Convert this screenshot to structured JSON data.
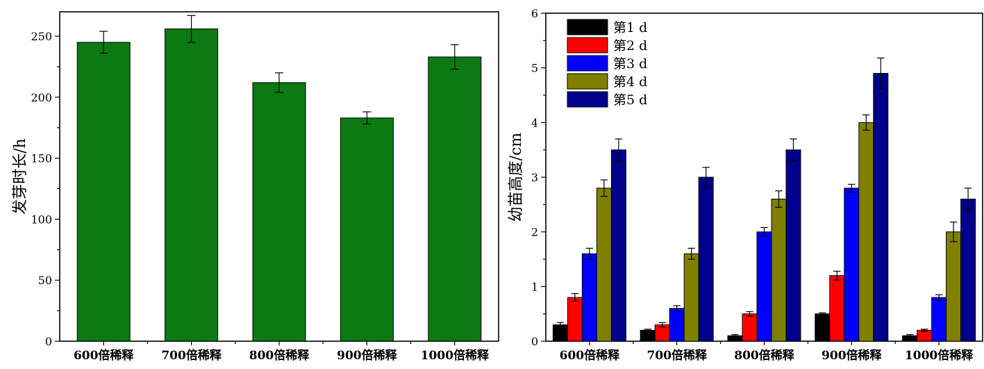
{
  "chart_data": [
    {
      "type": "bar",
      "title": "",
      "xlabel": "",
      "ylabel": "发芽时长/h",
      "ylim": [
        0,
        270
      ],
      "yticks": [
        0,
        50,
        100,
        150,
        200,
        250
      ],
      "categories": [
        "600倍稀释",
        "700倍稀释",
        "800倍稀释",
        "900倍稀释",
        "1000倍稀释"
      ],
      "series": [
        {
          "values": [
            245,
            256,
            212,
            183,
            233
          ],
          "errors": [
            9,
            11,
            8,
            5,
            10
          ],
          "color": "#0b7a12"
        }
      ],
      "grid": false,
      "legend": false
    },
    {
      "type": "bar",
      "title": "",
      "xlabel": "",
      "ylabel": "幼苗高度/cm",
      "ylim": [
        0,
        6
      ],
      "yticks": [
        0,
        1,
        2,
        3,
        4,
        5,
        6
      ],
      "categories": [
        "600倍稀释",
        "700倍稀释",
        "800倍稀释",
        "900倍稀释",
        "1000倍稀释"
      ],
      "series": [
        {
          "name": "第1 d",
          "color": "#000000",
          "values": [
            0.3,
            0.2,
            0.1,
            0.5,
            0.1
          ],
          "errors": [
            0.04,
            0.02,
            0.02,
            0.02,
            0.02
          ]
        },
        {
          "name": "第2 d",
          "color": "#ff0000",
          "values": [
            0.8,
            0.3,
            0.5,
            1.2,
            0.2
          ],
          "errors": [
            0.07,
            0.04,
            0.04,
            0.08,
            0.02
          ]
        },
        {
          "name": "第3 d",
          "color": "#0000ff",
          "values": [
            1.6,
            0.6,
            2.0,
            2.8,
            0.8
          ],
          "errors": [
            0.1,
            0.05,
            0.08,
            0.07,
            0.05
          ]
        },
        {
          "name": "第4 d",
          "color": "#808000",
          "values": [
            2.8,
            1.6,
            2.6,
            4.0,
            2.0
          ],
          "errors": [
            0.15,
            0.1,
            0.15,
            0.14,
            0.18
          ]
        },
        {
          "name": "第5 d",
          "color": "#00008b",
          "values": [
            3.5,
            3.0,
            3.5,
            4.9,
            2.6
          ],
          "errors": [
            0.2,
            0.18,
            0.2,
            0.28,
            0.2
          ]
        }
      ],
      "grid": false,
      "legend": "top-left"
    }
  ]
}
